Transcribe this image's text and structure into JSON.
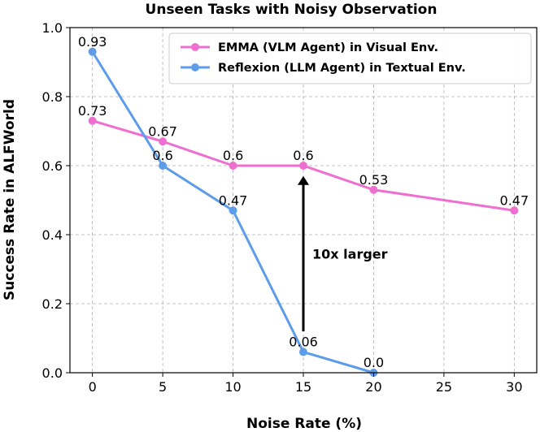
{
  "chart_data": {
    "type": "line",
    "title": "Unseen Tasks with Noisy Observation",
    "xlabel": "Noise Rate (%)",
    "ylabel": "Success Rate in ALFWorld",
    "xlim": [
      -1.6,
      31.6
    ],
    "ylim": [
      0.0,
      1.0
    ],
    "xticks": [
      0,
      5,
      10,
      15,
      20,
      25,
      30
    ],
    "xtick_labels": [
      "0",
      "5",
      "10",
      "15",
      "20",
      "25",
      "30"
    ],
    "yticks": [
      0.0,
      0.2,
      0.4,
      0.6,
      0.8,
      1.0
    ],
    "ytick_labels": [
      "0.0",
      "0.2",
      "0.4",
      "0.6",
      "0.8",
      "1.0"
    ],
    "grid": true,
    "legend_position": "top-right",
    "series": [
      {
        "name": "EMMA (VLM Agent) in Visual Env.",
        "color": "#ee6fcf",
        "x": [
          0,
          5,
          10,
          15,
          20,
          30
        ],
        "values": [
          0.73,
          0.67,
          0.6,
          0.6,
          0.53,
          0.47
        ],
        "labels": [
          "0.73",
          "0.67",
          "0.6",
          "0.6",
          "0.53",
          "0.47"
        ]
      },
      {
        "name": "Reflexion (LLM Agent) in Textual Env.",
        "color": "#5d9ce9",
        "x": [
          0,
          5,
          10,
          15,
          20
        ],
        "values": [
          0.93,
          0.6,
          0.47,
          0.06,
          0.0
        ],
        "labels": [
          "0.93",
          "0.6",
          "0.47",
          "0.06",
          "0.0"
        ]
      }
    ],
    "annotation": {
      "text": "10x larger",
      "arrow_x": 15,
      "arrow_from": 0.12,
      "arrow_to": 0.57
    }
  }
}
